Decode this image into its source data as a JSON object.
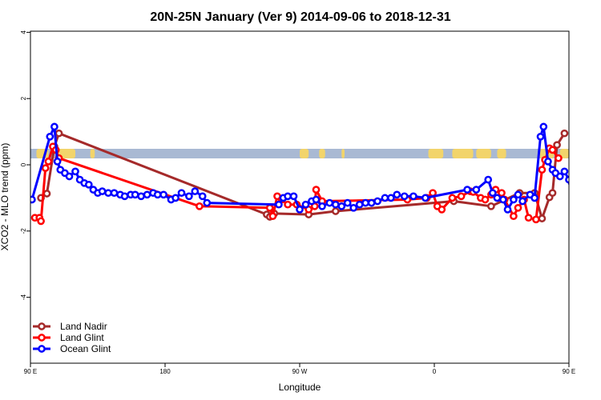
{
  "chart_data": {
    "type": "line",
    "title": "20N-25N January (Ver 9)   2014-09-06 to 2018-12-31",
    "xlabel": "Longitude",
    "ylabel": "XCO2 - MLO trend (ppm)",
    "xlim": [
      90,
      450
    ],
    "ylim": [
      -6,
      4
    ],
    "x_ticks": [
      {
        "value": 90,
        "label": "90 E"
      },
      {
        "value": 180,
        "label": "180"
      },
      {
        "value": 270,
        "label": "90 W"
      },
      {
        "value": 360,
        "label": "0"
      },
      {
        "value": 450,
        "label": "90 E"
      }
    ],
    "y_ticks": [
      {
        "value": 4,
        "label": "4"
      },
      {
        "value": 2,
        "label": "2"
      },
      {
        "value": 0,
        "label": "0"
      },
      {
        "value": -2,
        "label": "-2"
      },
      {
        "value": -4,
        "label": "-4"
      }
    ],
    "legend_position": "bottom-left",
    "colors": {
      "land_nadir": "#a52a2a",
      "land_glint": "#ff0000",
      "ocean_glint": "#0000ff",
      "map_ocean": "#a9b9d3",
      "map_land": "#f2d46b"
    },
    "series": [
      {
        "name": "Land Nadir",
        "color": "#a52a2a",
        "points": [
          [
            97,
            -1
          ],
          [
            101,
            -0.87
          ],
          [
            106,
            0.55
          ],
          [
            109,
            0.95
          ],
          [
            248,
            -1.5
          ],
          [
            250,
            -1.57
          ],
          [
            253,
            -1.47
          ],
          [
            276,
            -1.5
          ],
          [
            294,
            -1.4
          ],
          [
            373,
            -1.1
          ],
          [
            398,
            -1.25
          ],
          [
            417,
            -0.85
          ],
          [
            427,
            -0.85
          ],
          [
            432,
            -1.62
          ],
          [
            437,
            -0.98
          ],
          [
            439,
            -0.85
          ],
          [
            442,
            0.6
          ],
          [
            447,
            0.95
          ]
        ]
      },
      {
        "name": "Land Glint",
        "color": "#ff0000",
        "points": [
          [
            93,
            -1.6
          ],
          [
            96,
            -1.6
          ],
          [
            97,
            -1.7
          ],
          [
            100,
            -0.1
          ],
          [
            102,
            0.1
          ],
          [
            105,
            0.55
          ],
          [
            107,
            0.45
          ],
          [
            109,
            0.2
          ],
          [
            203,
            -1.25
          ],
          [
            250,
            -1.3
          ],
          [
            252,
            -1.55
          ],
          [
            255,
            -0.95
          ],
          [
            258,
            -1.05
          ],
          [
            262,
            -1.2
          ],
          [
            268,
            -1.2
          ],
          [
            276,
            -1.35
          ],
          [
            280,
            -1.25
          ],
          [
            281,
            -0.75
          ],
          [
            285,
            -1.1
          ],
          [
            342,
            -1.05
          ],
          [
            355,
            -1.0
          ],
          [
            359,
            -0.85
          ],
          [
            362,
            -1.25
          ],
          [
            365,
            -1.35
          ],
          [
            372,
            -1.0
          ],
          [
            378,
            -0.95
          ],
          [
            384,
            -0.8
          ],
          [
            386,
            -0.82
          ],
          [
            391,
            -1.0
          ],
          [
            394,
            -1.05
          ],
          [
            398,
            -0.9
          ],
          [
            401,
            -0.75
          ],
          [
            405,
            -0.85
          ],
          [
            407,
            -1.05
          ],
          [
            413,
            -1.55
          ],
          [
            416,
            -1.3
          ],
          [
            420,
            -1.05
          ],
          [
            423,
            -1.6
          ],
          [
            428,
            -1.65
          ],
          [
            432,
            -0.15
          ],
          [
            434,
            0.15
          ],
          [
            437,
            0.5
          ],
          [
            439,
            0.45
          ],
          [
            443,
            0.2
          ]
        ]
      },
      {
        "name": "Ocean Glint",
        "color": "#0000ff",
        "points": [
          [
            91,
            -1.05
          ],
          [
            103,
            0.85
          ],
          [
            106,
            1.15
          ],
          [
            108,
            0.1
          ],
          [
            110,
            -0.15
          ],
          [
            113,
            -0.25
          ],
          [
            116,
            -0.35
          ],
          [
            120,
            -0.2
          ],
          [
            123,
            -0.45
          ],
          [
            126,
            -0.55
          ],
          [
            129,
            -0.6
          ],
          [
            132,
            -0.75
          ],
          [
            135,
            -0.85
          ],
          [
            138,
            -0.8
          ],
          [
            142,
            -0.85
          ],
          [
            146,
            -0.85
          ],
          [
            150,
            -0.9
          ],
          [
            153,
            -0.95
          ],
          [
            157,
            -0.9
          ],
          [
            160,
            -0.9
          ],
          [
            164,
            -0.95
          ],
          [
            168,
            -0.9
          ],
          [
            172,
            -0.85
          ],
          [
            175,
            -0.9
          ],
          [
            179,
            -0.9
          ],
          [
            184,
            -1.05
          ],
          [
            187,
            -1.0
          ],
          [
            191,
            -0.85
          ],
          [
            196,
            -0.95
          ],
          [
            200,
            -0.8
          ],
          [
            205,
            -0.95
          ],
          [
            208,
            -1.15
          ],
          [
            256,
            -1.2
          ],
          [
            259,
            -1.0
          ],
          [
            262,
            -0.95
          ],
          [
            266,
            -0.95
          ],
          [
            270,
            -1.35
          ],
          [
            274,
            -1.2
          ],
          [
            278,
            -1.1
          ],
          [
            281,
            -1.05
          ],
          [
            285,
            -1.25
          ],
          [
            290,
            -1.15
          ],
          [
            294,
            -1.2
          ],
          [
            298,
            -1.25
          ],
          [
            302,
            -1.15
          ],
          [
            306,
            -1.3
          ],
          [
            310,
            -1.2
          ],
          [
            314,
            -1.15
          ],
          [
            318,
            -1.15
          ],
          [
            322,
            -1.1
          ],
          [
            327,
            -1.0
          ],
          [
            331,
            -1.0
          ],
          [
            335,
            -0.9
          ],
          [
            340,
            -0.95
          ],
          [
            346,
            -0.95
          ],
          [
            354,
            -1.0
          ],
          [
            382,
            -0.75
          ],
          [
            388,
            -0.75
          ],
          [
            396,
            -0.45
          ],
          [
            399,
            -0.85
          ],
          [
            402,
            -1.0
          ],
          [
            406,
            -1.05
          ],
          [
            409,
            -1.35
          ],
          [
            413,
            -1.05
          ],
          [
            416,
            -0.9
          ],
          [
            419,
            -1.1
          ],
          [
            424,
            -0.9
          ],
          [
            427,
            -1.0
          ],
          [
            431,
            0.85
          ],
          [
            433,
            1.15
          ],
          [
            436,
            0.1
          ],
          [
            439,
            -0.15
          ],
          [
            441,
            -0.25
          ],
          [
            444,
            -0.35
          ],
          [
            447,
            -0.2
          ],
          [
            450,
            -0.45
          ],
          [
            452,
            -0.55
          ],
          [
            455,
            -0.6
          ],
          [
            459,
            -0.75
          ],
          [
            462,
            -0.85
          ],
          [
            466,
            -0.8
          ],
          [
            470,
            -0.85
          ],
          [
            475,
            -0.9
          ]
        ]
      }
    ]
  }
}
